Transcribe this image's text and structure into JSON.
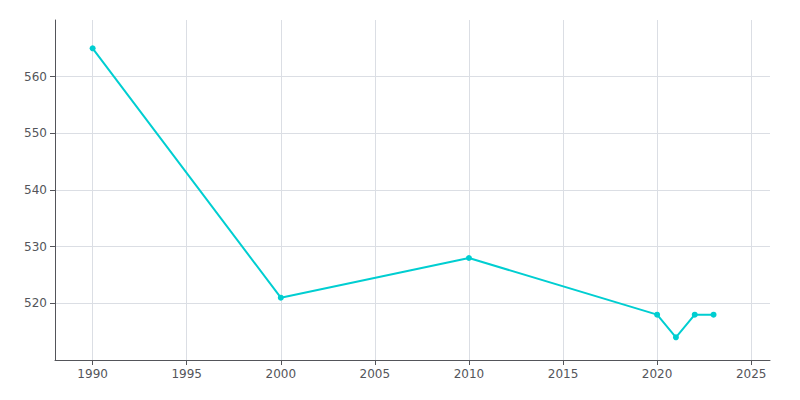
{
  "chart_data": {
    "type": "line",
    "x": [
      1990,
      2000,
      2010,
      2020,
      2021,
      2022,
      2023
    ],
    "values": [
      565,
      521,
      528,
      518,
      514,
      518,
      518
    ],
    "color": "#00CED1",
    "marker": "circle",
    "xlim": [
      1988,
      2026
    ],
    "ylim": [
      510,
      570
    ],
    "xticks": [
      1990,
      1995,
      2000,
      2005,
      2010,
      2015,
      2020,
      2025
    ],
    "yticks": [
      520,
      530,
      540,
      550,
      560
    ],
    "grid": true
  }
}
